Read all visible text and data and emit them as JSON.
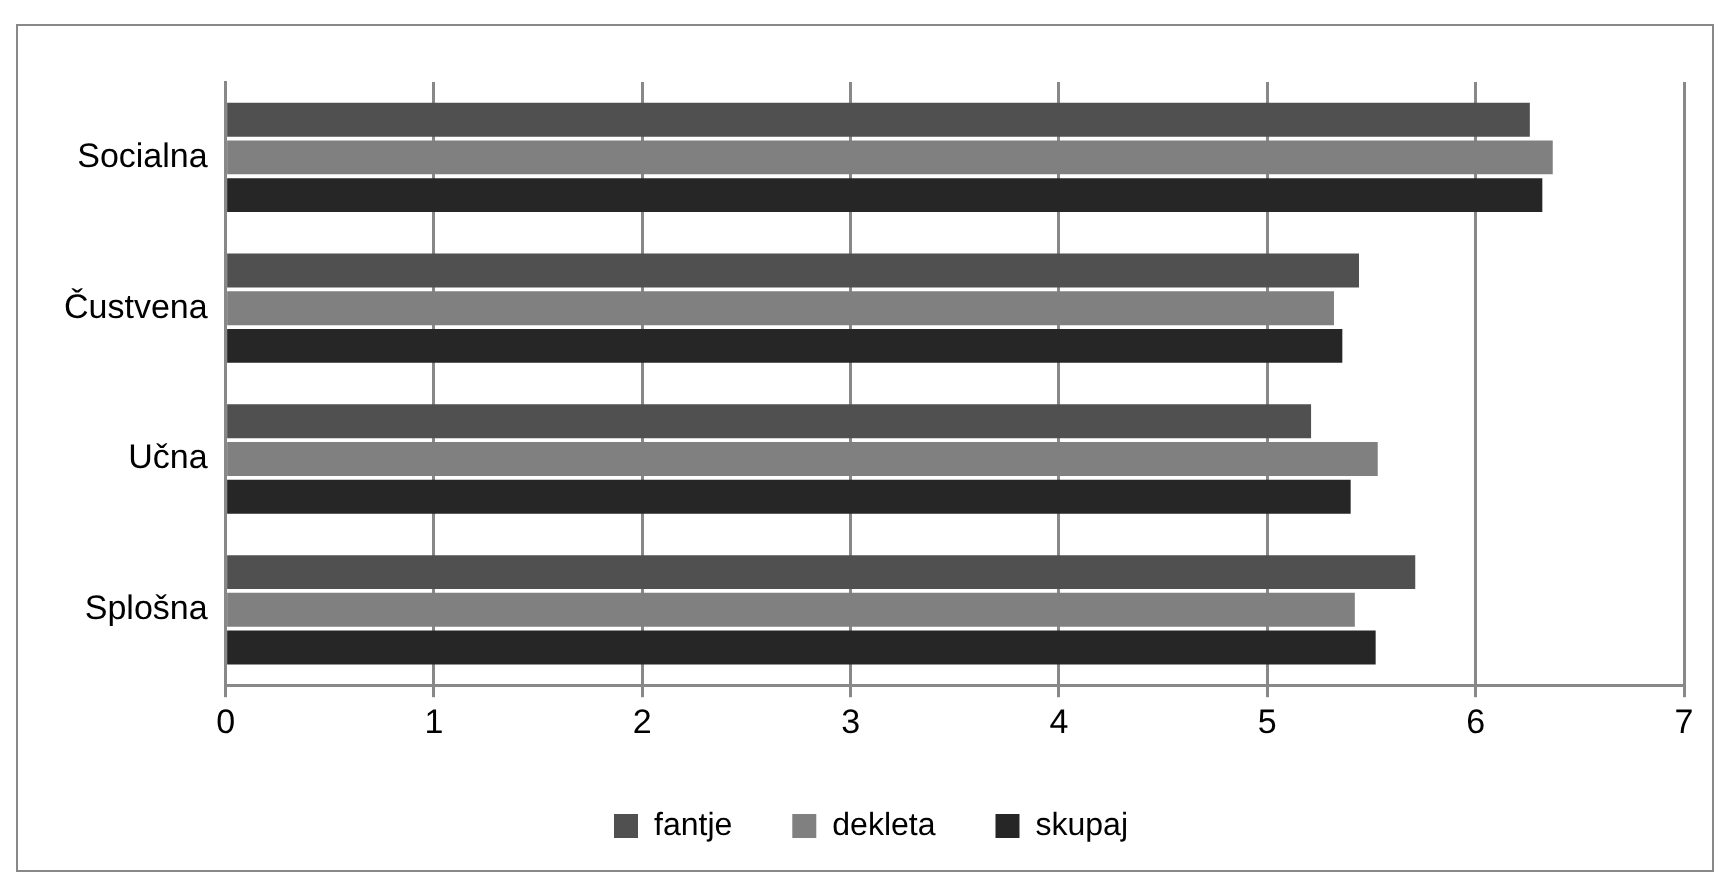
{
  "chart_data": {
    "type": "bar",
    "orientation": "horizontal",
    "categories": [
      "Socialna",
      "Čustvena",
      "Učna",
      "Splošna"
    ],
    "series": [
      {
        "name": "fantje",
        "color": "#505050",
        "values": [
          6.26,
          5.44,
          5.21,
          5.71
        ]
      },
      {
        "name": "dekleta",
        "color": "#808080",
        "values": [
          6.37,
          5.32,
          5.53,
          5.42
        ]
      },
      {
        "name": "skupaj",
        "color": "#262626",
        "values": [
          6.32,
          5.36,
          5.4,
          5.52
        ]
      }
    ],
    "xlim": [
      0,
      7
    ],
    "xticks": [
      0,
      1,
      2,
      3,
      4,
      5,
      6,
      7
    ],
    "grid": "x",
    "legend": "bottom"
  }
}
